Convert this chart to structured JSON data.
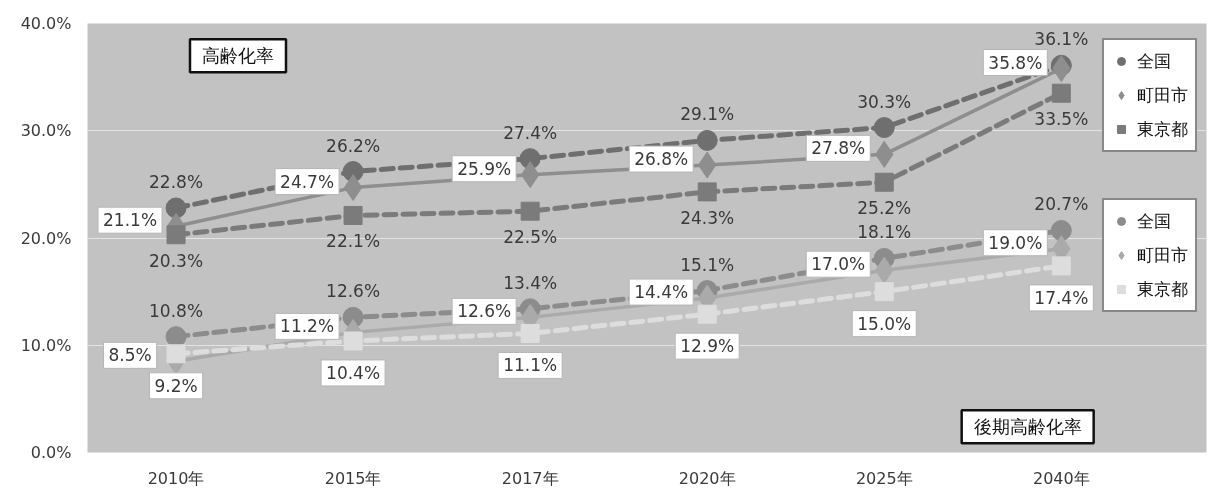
{
  "chart_data": {
    "type": "line",
    "categories": [
      "2010年",
      "2015年",
      "2017年",
      "2020年",
      "2025年",
      "2040年"
    ],
    "ylim": [
      0,
      40
    ],
    "yticks": [
      {
        "value": 0,
        "label": "0.0%"
      },
      {
        "value": 10,
        "label": "10.0%"
      },
      {
        "value": 20,
        "label": "20.0%"
      },
      {
        "value": 30,
        "label": "30.0%"
      },
      {
        "value": 40,
        "label": "40.0%"
      }
    ],
    "grid": "y",
    "legend": "right",
    "annotations": [
      "高齢化率",
      "後期高齢化率"
    ],
    "series": [
      {
        "name": "全国",
        "color": "#6f6f6f",
        "marker": "circle",
        "line_style": "dashed",
        "values": [
          22.8,
          26.2,
          27.4,
          29.1,
          30.3,
          36.1
        ],
        "value_labels": [
          "22.8%",
          "26.2%",
          "27.4%",
          "29.1%",
          "30.3%",
          "36.1%"
        ]
      },
      {
        "name": "町田市",
        "color": "#8e8e8e",
        "marker": "diamond",
        "line_style": "solid",
        "values": [
          21.1,
          24.7,
          25.9,
          26.8,
          27.8,
          35.8
        ],
        "value_labels": [
          "21.1%",
          "24.7%",
          "25.9%",
          "26.8%",
          "27.8%",
          "35.8%"
        ]
      },
      {
        "name": "東京都",
        "color": "#7b7b7b",
        "marker": "square",
        "line_style": "dashed",
        "values": [
          20.3,
          22.1,
          22.5,
          24.3,
          25.2,
          33.5
        ],
        "value_labels": [
          "20.3%",
          "22.1%",
          "22.5%",
          "24.3%",
          "25.2%",
          "33.5%"
        ]
      },
      {
        "name": "全国",
        "color": "#8c8c8c",
        "marker": "circle",
        "line_style": "dashed",
        "values": [
          10.8,
          12.6,
          13.4,
          15.1,
          18.1,
          20.7
        ],
        "value_labels": [
          "10.8%",
          "12.6%",
          "13.4%",
          "15.1%",
          "18.1%",
          "20.7%"
        ]
      },
      {
        "name": "町田市",
        "color": "#aaaaaa",
        "marker": "diamond",
        "line_style": "solid",
        "values": [
          8.5,
          11.2,
          12.6,
          14.4,
          17.0,
          19.0
        ],
        "value_labels": [
          "8.5%",
          "11.2%",
          "12.6%",
          "14.4%",
          "17.0%",
          "19.0%"
        ]
      },
      {
        "name": "東京都",
        "color": "#dddddd",
        "marker": "square",
        "line_style": "dashed",
        "values": [
          9.2,
          10.4,
          11.1,
          12.9,
          15.0,
          17.4
        ],
        "value_labels": [
          "9.2%",
          "10.4%",
          "11.1%",
          "12.9%",
          "15.0%",
          "17.4%"
        ]
      }
    ]
  }
}
